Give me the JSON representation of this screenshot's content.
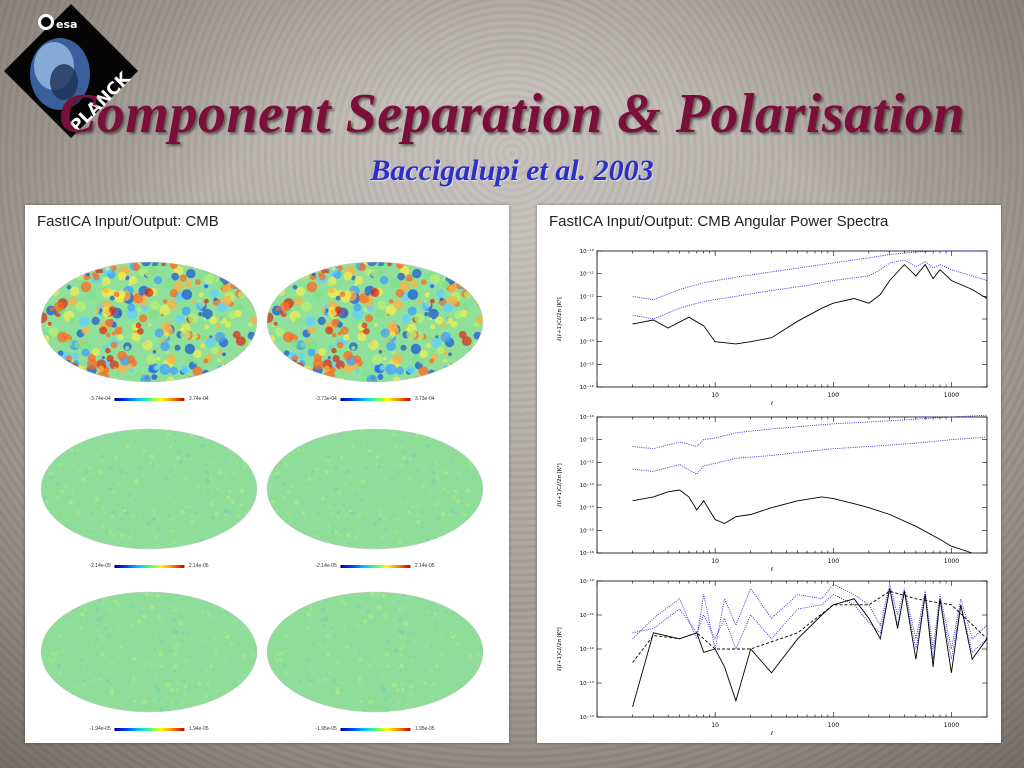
{
  "slide": {
    "title": "Component Separation & Polarisation",
    "subtitle": "Baccigalupi et al. 2003",
    "logo_text": "PLANCK",
    "logo_agency": "esa"
  },
  "left_panel": {
    "title": "FastICA Input/Output:  CMB",
    "maps": [
      {
        "min": "-3.74e-04",
        "max": "3.74e-04",
        "style": "cmb"
      },
      {
        "min": "-3.73e-04",
        "max": "3.73e-04",
        "style": "cmb"
      },
      {
        "min": "-2.14e-05",
        "max": "2.14e-05",
        "style": "noise"
      },
      {
        "min": "-2.14e-05",
        "max": "2.14e-05",
        "style": "noise"
      },
      {
        "min": "-1.94e-05",
        "max": "1.94e-05",
        "style": "noise2"
      },
      {
        "min": "-1.95e-05",
        "max": "1.95e-05",
        "style": "noise2"
      }
    ]
  },
  "right_panel": {
    "title": "FastICA Input/Output:  CMB Angular Power Spectra"
  },
  "colors": {
    "title": "#7a0f3a",
    "subtitle": "#2d2fc9",
    "series_blue": "#2b2bd0",
    "series_black": "#000000"
  },
  "chart_data": [
    {
      "type": "line",
      "xlabel": "ℓ",
      "ylabel": "ℓ(ℓ+1)Cℓ/2π  [K²]",
      "xscale": "log",
      "yscale": "log",
      "xlim": [
        1,
        2000
      ],
      "ylim": [
        1e-16,
        1e-10
      ],
      "x_ticks": [
        "10",
        "100",
        "1000"
      ],
      "y_ticks": [
        "10⁻¹⁶",
        "10⁻¹⁵",
        "10⁻¹⁴",
        "10⁻¹³",
        "10⁻¹²",
        "10⁻¹¹",
        "10⁻¹⁰"
      ],
      "series": [
        {
          "style": "dotted-blue",
          "x": [
            2,
            3,
            5,
            8,
            15,
            30,
            60,
            100,
            200,
            300,
            500,
            800,
            1000,
            1500,
            2000
          ],
          "y": [
            1e-12,
            7e-13,
            2e-12,
            4e-12,
            7e-12,
            1.2e-11,
            2e-11,
            3e-11,
            5e-11,
            7e-11,
            9e-11,
            1e-10,
            1e-10,
            1e-10,
            1e-10
          ]
        },
        {
          "style": "dotted-blue",
          "x": [
            2,
            3,
            5,
            8,
            15,
            30,
            60,
            100,
            200,
            250,
            300,
            400,
            500,
            600,
            700,
            800,
            1000,
            1500,
            2000
          ],
          "y": [
            1.5e-13,
            1e-13,
            3e-13,
            6e-13,
            1e-12,
            1.8e-12,
            3e-12,
            5e-12,
            8e-12,
            1.5e-11,
            3e-11,
            4e-11,
            2e-11,
            3.5e-11,
            1.8e-11,
            2.5e-11,
            1.5e-11,
            8e-12,
            5e-12
          ]
        },
        {
          "style": "solid-black",
          "x": [
            2,
            3,
            4,
            6,
            8,
            10,
            15,
            20,
            30,
            50,
            80,
            100,
            150,
            200,
            250,
            300,
            400,
            500,
            600,
            700,
            800,
            1000,
            1500,
            2000
          ],
          "y": [
            6e-14,
            9e-14,
            4e-14,
            1.2e-13,
            5e-14,
            1e-14,
            8e-15,
            1e-14,
            1.5e-14,
            8e-14,
            3e-13,
            5e-13,
            8e-13,
            5e-13,
            1.2e-12,
            5e-12,
            2.5e-11,
            8e-12,
            2.5e-11,
            6e-12,
            1.5e-11,
            5e-12,
            2e-12,
            8e-13
          ]
        }
      ]
    },
    {
      "type": "line",
      "xlabel": "ℓ",
      "ylabel": "ℓ(ℓ+1)Cℓ/2π  [K²]",
      "xscale": "log",
      "yscale": "log",
      "xlim": [
        1,
        2000
      ],
      "ylim": [
        1e-16,
        1e-10
      ],
      "x_ticks": [
        "10",
        "100",
        "1000"
      ],
      "y_ticks": [
        "10⁻¹⁶",
        "10⁻¹⁵",
        "10⁻¹⁴",
        "10⁻¹³",
        "10⁻¹²",
        "10⁻¹¹",
        "10⁻¹⁰"
      ],
      "series": [
        {
          "style": "dotted-blue",
          "x": [
            2,
            3,
            5,
            7,
            8,
            10,
            15,
            30,
            60,
            100,
            200,
            500,
            1000,
            2000
          ],
          "y": [
            5e-12,
            4e-12,
            8e-12,
            5e-12,
            1e-11,
            1.2e-11,
            2e-11,
            3e-11,
            4e-11,
            5e-11,
            6e-11,
            8e-11,
            1e-10,
            1.2e-10
          ]
        },
        {
          "style": "dotted-blue",
          "x": [
            2,
            3,
            5,
            7,
            8,
            10,
            15,
            30,
            60,
            100,
            200,
            500,
            1000,
            2000
          ],
          "y": [
            5e-13,
            4e-13,
            8e-13,
            3e-13,
            7e-13,
            9e-13,
            1.5e-12,
            2e-12,
            3e-12,
            4e-12,
            5e-12,
            7e-12,
            1e-11,
            1.3e-11
          ]
        },
        {
          "style": "solid-black",
          "x": [
            2,
            3,
            4,
            5,
            6,
            7,
            8,
            10,
            12,
            15,
            20,
            30,
            50,
            80,
            100,
            150,
            200,
            300,
            500,
            800,
            1000,
            1500
          ],
          "y": [
            2e-14,
            3e-14,
            5e-14,
            6e-14,
            3e-14,
            8e-15,
            2e-14,
            3e-15,
            2e-15,
            4e-15,
            5e-15,
            1e-14,
            2e-14,
            3e-14,
            2.5e-14,
            1.5e-14,
            1e-14,
            5e-15,
            1.5e-15,
            4e-16,
            2e-16,
            1e-16
          ]
        }
      ]
    },
    {
      "type": "line",
      "xlabel": "ℓ",
      "ylabel": "ℓ(ℓ+1)Cℓ/2π  [K²]",
      "xscale": "log",
      "yscale": "log",
      "xlim": [
        1,
        2000
      ],
      "ylim": [
        1e-14,
        1e-10
      ],
      "x_ticks": [
        "10",
        "100",
        "1000"
      ],
      "y_ticks": [
        "10⁻¹⁴",
        "10⁻¹³",
        "10⁻¹²",
        "10⁻¹¹",
        "10⁻¹⁰"
      ],
      "series": [
        {
          "style": "dotted-blue",
          "x": [
            2,
            3,
            5,
            7,
            8,
            10,
            12,
            15,
            20,
            30,
            50,
            80,
            100,
            150,
            200,
            250,
            300,
            350,
            400,
            500,
            600,
            700,
            800,
            1000,
            1200,
            1500,
            2000
          ],
          "y": [
            2e-12,
            8e-12,
            3e-11,
            2e-12,
            4e-11,
            1e-12,
            3e-11,
            5e-12,
            6e-11,
            8e-12,
            4e-11,
            3e-11,
            8e-11,
            4e-11,
            2e-11,
            5e-12,
            8e-11,
            1e-11,
            6e-11,
            2e-12,
            5e-11,
            1e-12,
            4e-11,
            1e-12,
            3e-11,
            2e-12,
            5e-12
          ]
        },
        {
          "style": "dotted-blue",
          "x": [
            2,
            3,
            5,
            7,
            8,
            10,
            12,
            15,
            20,
            30,
            50,
            80,
            100,
            150,
            200,
            250,
            300,
            350,
            400,
            500,
            600,
            700,
            800,
            1000,
            1200,
            1500,
            2000
          ],
          "y": [
            3e-12,
            4e-12,
            1.5e-11,
            3e-12,
            1e-11,
            2e-12,
            8e-12,
            1e-12,
            1e-11,
            2e-12,
            1.5e-11,
            2e-11,
            4e-11,
            2e-11,
            6e-12,
            3e-12,
            6e-11,
            5e-12,
            5e-11,
            1e-12,
            4e-11,
            5e-13,
            3e-11,
            5e-13,
            2e-11,
            8e-13,
            2e-12
          ]
        },
        {
          "style": "solid-black",
          "x": [
            2,
            3,
            5,
            7,
            8,
            10,
            12,
            15,
            20,
            30,
            50,
            80,
            100,
            150,
            200,
            250,
            300,
            350,
            400,
            500,
            600,
            700,
            800,
            1000,
            1200,
            1500,
            2000
          ],
          "y": [
            2e-14,
            3e-12,
            2e-12,
            3e-12,
            8e-13,
            1e-12,
            3e-13,
            3e-14,
            1e-12,
            2e-13,
            2e-12,
            1e-11,
            2e-11,
            3e-11,
            8e-12,
            2e-12,
            6e-11,
            4e-12,
            5e-11,
            5e-13,
            4e-11,
            3e-13,
            3e-11,
            2e-13,
            2e-11,
            5e-13,
            2e-12
          ]
        },
        {
          "style": "dashed-black",
          "x": [
            2,
            3,
            5,
            7,
            10,
            20,
            50,
            100,
            200,
            300,
            500,
            1000,
            2000
          ],
          "y": [
            4e-13,
            2.5e-12,
            2e-12,
            3e-12,
            1e-12,
            1e-12,
            3e-12,
            2e-11,
            2e-11,
            5e-11,
            3e-11,
            2e-11,
            2e-12
          ]
        }
      ]
    }
  ]
}
